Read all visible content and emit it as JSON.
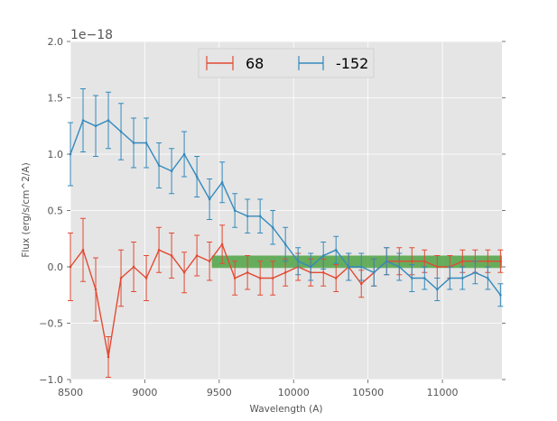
{
  "chart_data": {
    "type": "line",
    "title": "",
    "xlabel": "Wavelength (A)",
    "ylabel": "Flux (erg/s/cm^2/A)",
    "y_offset_label": "1e−18",
    "xlim": [
      8500,
      11400
    ],
    "ylim": [
      -1.0,
      2.0
    ],
    "x_ticks": [
      8500,
      9000,
      9500,
      10000,
      10500,
      11000
    ],
    "y_ticks": [
      -1.0,
      -0.5,
      0.0,
      0.5,
      1.0,
      1.5,
      2.0
    ],
    "x_tick_labels": [
      "8500",
      "9000",
      "9500",
      "10000",
      "10500",
      "11000"
    ],
    "y_tick_labels": [
      "−1.0",
      "−0.5",
      "0.0",
      "0.5",
      "1.0",
      "1.5",
      "2.0"
    ],
    "grid": true,
    "legend_position": "top-center",
    "x": [
      8500,
      8585,
      8670,
      8755,
      8840,
      8925,
      9010,
      9095,
      9180,
      9265,
      9350,
      9435,
      9520,
      9605,
      9690,
      9775,
      9860,
      9945,
      10030,
      10115,
      10200,
      10285,
      10370,
      10455,
      10540,
      10625,
      10710,
      10795,
      10880,
      10965,
      11050,
      11135,
      11220,
      11305,
      11390
    ],
    "series": [
      {
        "name": "68",
        "color": "#e24a33",
        "values": [
          0.0,
          0.15,
          -0.2,
          -0.8,
          -0.1,
          0.0,
          -0.1,
          0.15,
          0.1,
          -0.05,
          0.1,
          0.05,
          0.2,
          -0.1,
          -0.05,
          -0.1,
          -0.1,
          -0.05,
          0.0,
          -0.05,
          -0.05,
          -0.1,
          0.0,
          -0.15,
          -0.05,
          0.05,
          0.05,
          0.05,
          0.05,
          0.0,
          0.0,
          0.05,
          0.05,
          0.05,
          0.05
        ],
        "errors": [
          0.3,
          0.28,
          0.28,
          0.18,
          0.25,
          0.22,
          0.2,
          0.2,
          0.2,
          0.18,
          0.18,
          0.17,
          0.17,
          0.15,
          0.15,
          0.15,
          0.15,
          0.12,
          0.12,
          0.12,
          0.12,
          0.12,
          0.12,
          0.12,
          0.12,
          0.12,
          0.12,
          0.12,
          0.1,
          0.1,
          0.1,
          0.1,
          0.1,
          0.1,
          0.1
        ]
      },
      {
        "name": "-152",
        "color": "#348abd",
        "values": [
          1.0,
          1.3,
          1.25,
          1.3,
          1.2,
          1.1,
          1.1,
          0.9,
          0.85,
          1.0,
          0.8,
          0.6,
          0.75,
          0.5,
          0.45,
          0.45,
          0.35,
          0.2,
          0.05,
          0.0,
          0.1,
          0.15,
          0.0,
          0.0,
          -0.05,
          0.05,
          0.0,
          -0.1,
          -0.1,
          -0.2,
          -0.1,
          -0.1,
          -0.05,
          -0.1,
          -0.25
        ],
        "errors": [
          0.28,
          0.28,
          0.27,
          0.25,
          0.25,
          0.22,
          0.22,
          0.2,
          0.2,
          0.2,
          0.18,
          0.18,
          0.18,
          0.15,
          0.15,
          0.15,
          0.15,
          0.15,
          0.12,
          0.12,
          0.12,
          0.12,
          0.12,
          0.12,
          0.12,
          0.12,
          0.12,
          0.12,
          0.1,
          0.1,
          0.1,
          0.1,
          0.1,
          0.1,
          0.1
        ]
      }
    ],
    "band": {
      "x_start": 9450,
      "x_end": 11400,
      "y_low": -0.01,
      "y_high": 0.1,
      "color": "#3a9a2e"
    }
  },
  "colors": {
    "plot_background": "#e5e5e5",
    "grid": "#ffffff",
    "text": "#555555"
  }
}
